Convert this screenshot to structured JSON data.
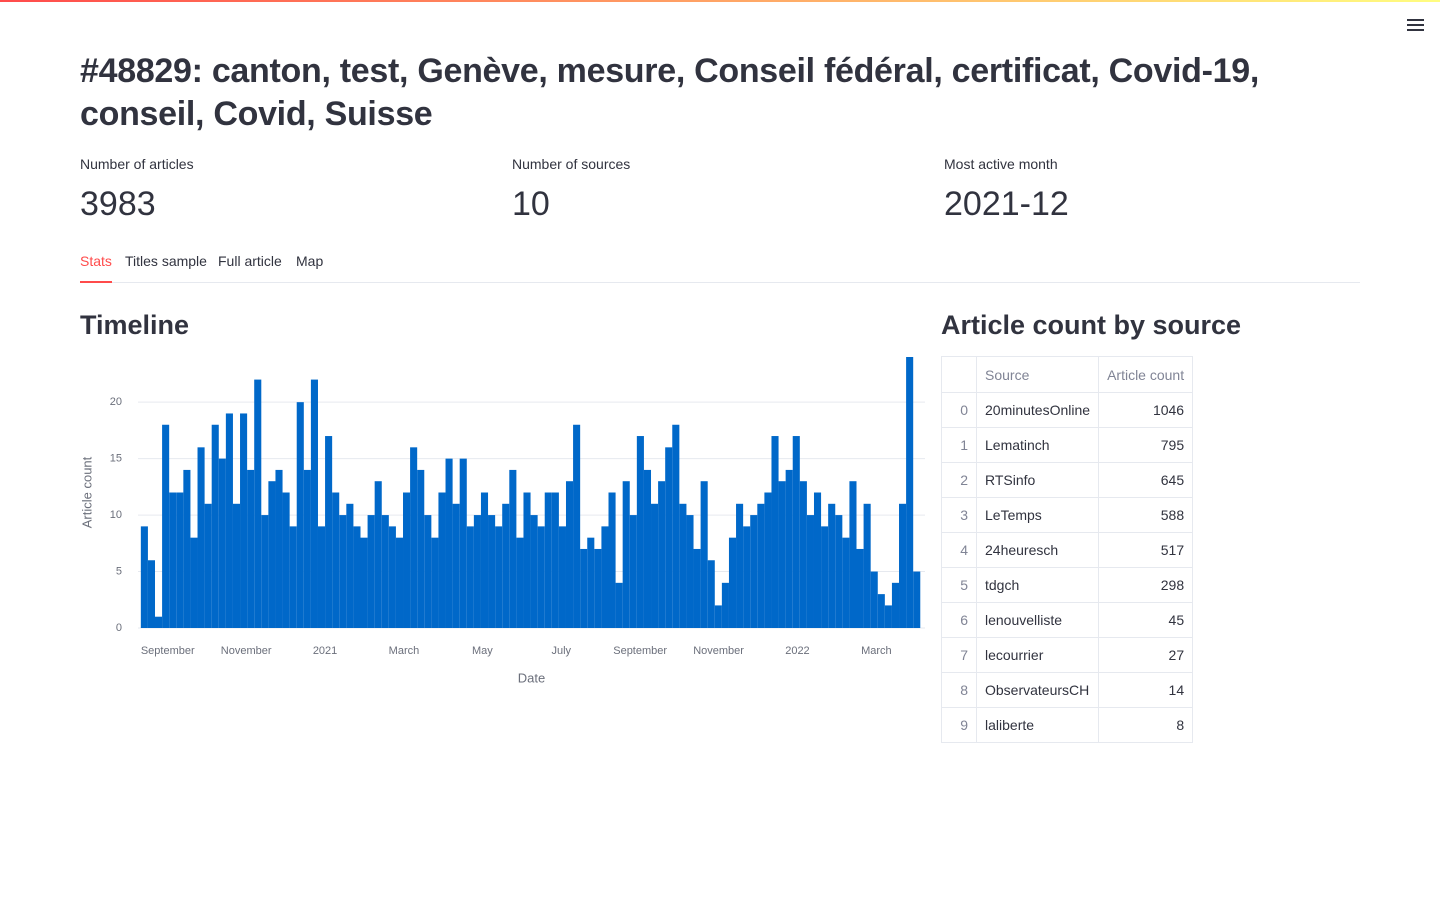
{
  "header": {
    "title": "#48829: canton, test, Genève, mesure, Conseil fédéral, certificat, Covid-19, conseil, Covid, Suisse"
  },
  "metrics": [
    {
      "label": "Number of articles",
      "value": 3983
    },
    {
      "label": "Number of sources",
      "value": 10
    },
    {
      "label": "Most active month",
      "value": "2021-12"
    }
  ],
  "tabs": [
    "Stats",
    "Titles sample",
    "Full article",
    "Map"
  ],
  "chart_data": {
    "type": "bar",
    "title": "Timeline",
    "x_label": "Date",
    "y_label": "Article count",
    "color": "#0068c9",
    "grid": true,
    "x": [
      2020.61,
      2020.625,
      2020.64,
      2020.655,
      2020.67,
      2020.685,
      2020.7,
      2020.715,
      2020.73,
      2020.745,
      2020.76,
      2020.775,
      2020.79,
      2020.805,
      2020.82,
      2020.835,
      2020.85,
      2020.865,
      2020.88,
      2020.895,
      2020.91,
      2020.925,
      2020.94,
      2020.955,
      2020.97,
      2020.985,
      2021,
      2021.015,
      2021.03,
      2021.045,
      2021.06,
      2021.075,
      2021.09,
      2021.105,
      2021.12,
      2021.135,
      2021.15,
      2021.165,
      2021.18,
      2021.195,
      2021.21,
      2021.225,
      2021.24,
      2021.255,
      2021.27,
      2021.285,
      2021.3,
      2021.315,
      2021.33,
      2021.345,
      2021.36,
      2021.375,
      2021.39,
      2021.405,
      2021.42,
      2021.435,
      2021.45,
      2021.465,
      2021.48,
      2021.495,
      2021.51,
      2021.525,
      2021.54,
      2021.555,
      2021.57,
      2021.585,
      2021.6,
      2021.615,
      2021.63,
      2021.645,
      2021.66,
      2021.675,
      2021.69,
      2021.705,
      2021.72,
      2021.735,
      2021.75,
      2021.765,
      2021.78,
      2021.795,
      2021.81,
      2021.825,
      2021.84,
      2021.855,
      2021.87,
      2021.885,
      2021.9,
      2021.915,
      2021.93,
      2021.945,
      2021.96,
      2021.975,
      2021.99,
      2022.005,
      2022.02,
      2022.035,
      2022.05,
      2022.065,
      2022.08,
      2022.095,
      2022.11,
      2022.125,
      2022.14,
      2022.155,
      2022.17,
      2022.185,
      2022.2,
      2022.215,
      2022.23,
      2022.245
    ],
    "values": [
      9,
      6,
      1,
      18,
      12,
      12,
      14,
      8,
      16,
      11,
      18,
      15,
      19,
      11,
      19,
      14,
      22,
      10,
      13,
      14,
      12,
      9,
      20,
      14,
      22,
      9,
      17,
      12,
      10,
      11,
      9,
      8,
      10,
      13,
      10,
      9,
      8,
      12,
      16,
      14,
      10,
      8,
      12,
      15,
      11,
      15,
      9,
      10,
      12,
      10,
      9,
      11,
      14,
      8,
      12,
      10,
      9,
      12,
      12,
      9,
      13,
      18,
      7,
      8,
      7,
      9,
      12,
      4,
      13,
      10,
      17,
      14,
      11,
      13,
      16,
      18,
      11,
      10,
      7,
      13,
      6,
      2,
      4,
      8,
      11,
      9,
      10,
      11,
      12,
      17,
      13,
      14,
      17,
      13,
      10,
      12,
      9,
      11,
      10,
      8,
      13,
      7,
      11,
      5,
      3,
      2,
      4,
      11,
      24,
      5
    ],
    "xlim": [
      2020.604,
      2022.27
    ],
    "xticks": [
      {
        "value": 2020.667,
        "label": "September"
      },
      {
        "value": 2020.833,
        "label": "November"
      },
      2021,
      {
        "value": 2021.167,
        "label": "March"
      },
      {
        "value": 2021.333,
        "label": "May"
      },
      {
        "value": 2021.5,
        "label": "July"
      },
      {
        "value": 2021.667,
        "label": "September"
      },
      {
        "value": 2021.833,
        "label": "November"
      },
      2022,
      {
        "value": 2022.167,
        "label": "March"
      }
    ],
    "ylim": [
      0,
      24
    ],
    "yticks": [
      0,
      5,
      10,
      15,
      20
    ]
  },
  "table": {
    "title": "Article count by source",
    "columns": [
      "Source",
      "Article count"
    ],
    "rows": [
      [
        0,
        "20minutesOnline",
        1046
      ],
      [
        1,
        "Lematinch",
        795
      ],
      [
        2,
        "RTSinfo",
        645
      ],
      [
        3,
        "LeTemps",
        588
      ],
      [
        4,
        "24heuresch",
        517
      ],
      [
        5,
        "tdgch",
        298
      ],
      [
        6,
        "lenouvelliste",
        45
      ],
      [
        7,
        "lecourrier",
        27
      ],
      [
        8,
        "ObservateursCH",
        14
      ],
      [
        9,
        "laliberte",
        8
      ]
    ]
  }
}
